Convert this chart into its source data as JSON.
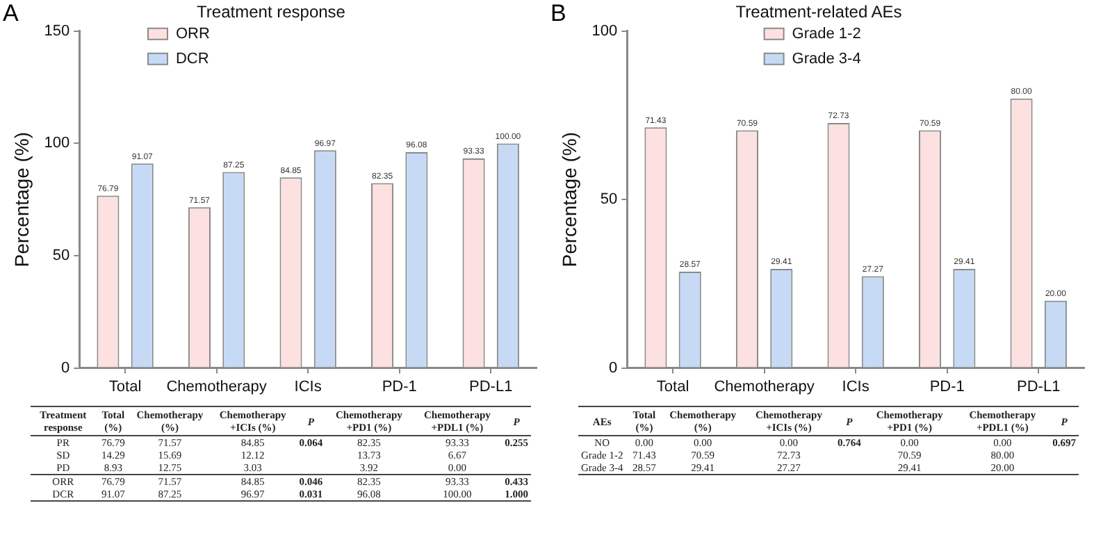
{
  "chart_data": [
    {
      "type": "bar",
      "title": "Treatment response",
      "ylabel": "Percentage (%)",
      "categories": [
        "Total",
        "Chemotherapy",
        "ICIs",
        "PD-1",
        "PD-L1"
      ],
      "series": [
        {
          "name": "ORR",
          "color": "#fde0e0",
          "values": [
            76.79,
            71.57,
            84.85,
            82.35,
            93.33
          ],
          "value_labels": [
            "76.79",
            "71.57",
            "84.85",
            "82.35",
            "93.33"
          ]
        },
        {
          "name": "DCR",
          "color": "#c6daf5",
          "values": [
            91.07,
            87.25,
            96.97,
            96.08,
            100
          ],
          "value_labels": [
            "91.07",
            "87.25",
            "96.97",
            "96.08",
            "100.00"
          ]
        }
      ],
      "ylim": [
        0,
        150
      ],
      "yticks": [
        0,
        50,
        100,
        150
      ],
      "grid": false,
      "legend": "top left",
      "annotations": [
        "A",
        "Treatment response",
        "Total (%)",
        "Chemotherapy (%)",
        "Chemotherapy +ICIs (%)",
        "P",
        "Chemotherapy +PD1 (%)",
        "Chemotherapy +PDL1 (%)",
        "P",
        "PR",
        "76.79",
        "71.57",
        "84.85",
        "0.064",
        "82.35",
        "93.33",
        "0.255",
        "SD",
        "14.29",
        "15.69",
        "12.12",
        "13.73",
        "6.67",
        "PD",
        "8.93",
        "12.75",
        "3.03",
        "3.92",
        "0.00",
        "ORR",
        "76.79",
        "71.57",
        "84.85",
        "0.046",
        "82.35",
        "93.33",
        "0.433",
        "DCR",
        "91.07",
        "87.25",
        "96.97",
        "0.031",
        "96.08",
        "100.00",
        "1.000"
      ]
    },
    {
      "type": "bar",
      "title": "Treatment-related AEs",
      "ylabel": "Percentage (%)",
      "categories": [
        "Total",
        "Chemotherapy",
        "ICIs",
        "PD-1",
        "PD-L1"
      ],
      "series": [
        {
          "name": "Grade 1-2",
          "color": "#fde0e0",
          "values": [
            71.43,
            70.59,
            72.73,
            70.59,
            80
          ],
          "value_labels": [
            "71.43",
            "70.59",
            "72.73",
            "70.59",
            "80.00"
          ]
        },
        {
          "name": "Grade 3-4",
          "color": "#c6daf5",
          "values": [
            28.57,
            29.41,
            27.27,
            29.41,
            20
          ],
          "value_labels": [
            "28.57",
            "29.41",
            "27.27",
            "29.41",
            "20.00"
          ]
        }
      ],
      "ylim": [
        0,
        100
      ],
      "yticks": [
        0,
        50,
        100
      ],
      "grid": false,
      "legend": "top",
      "annotations": [
        "B",
        "AEs",
        "Total (%)",
        "Chemotherapy (%)",
        "Chemotherapy +ICIs (%)",
        "P",
        "Chemotherapy +PD1 (%)",
        "Chemotherapy +PDL1 (%)",
        "P",
        "NO",
        "0.00",
        "0.00",
        "0.00",
        "0.764",
        "0.00",
        "0.00",
        "0.697",
        "Grade 1-2",
        "71.43",
        "70.59",
        "72.73",
        "70.59",
        "80.00",
        "Grade 3-4",
        "28.57",
        "29.41",
        "27.27",
        "29.41",
        "20.00"
      ]
    }
  ]
}
